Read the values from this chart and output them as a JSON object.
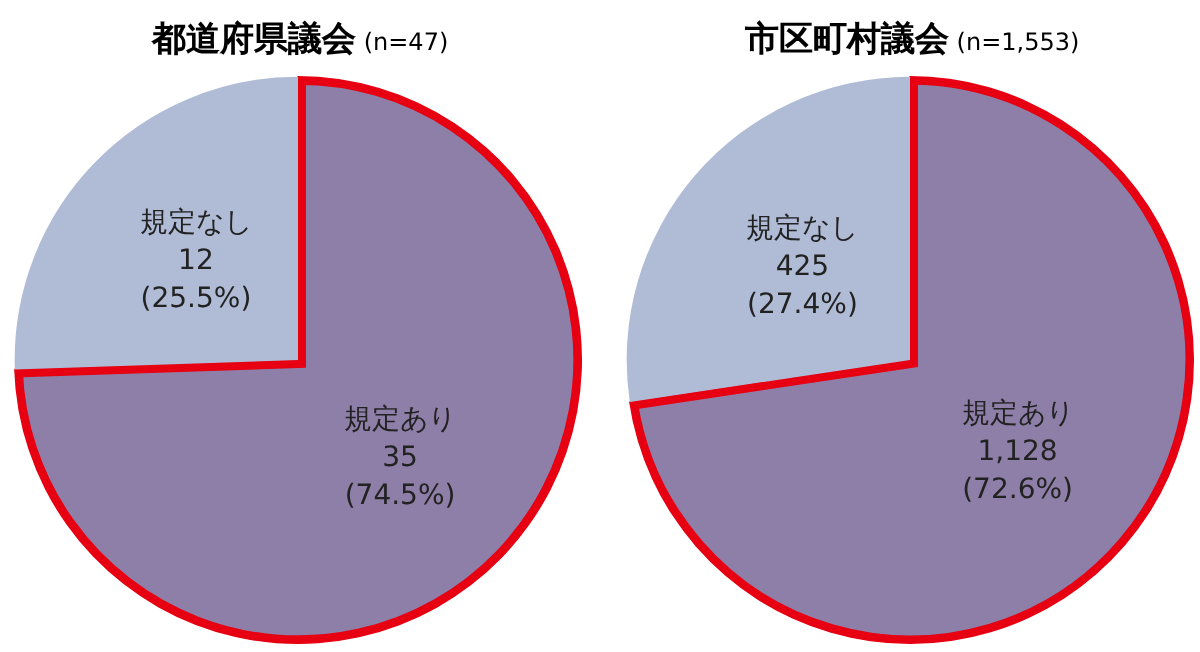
{
  "chart_data": [
    {
      "type": "pie",
      "title": "都道府県議会",
      "subtitle": "(n=47)",
      "categories": [
        "規定あり",
        "規定なし"
      ],
      "values": [
        35,
        12
      ],
      "colors": [
        "#8e7fa8",
        "#b0bcd6"
      ],
      "value_labels": [
        "35\n(74.5%)",
        "12\n(25.5%)"
      ]
    },
    {
      "type": "pie",
      "title": "市区町村議会",
      "subtitle": "(n=1,553)",
      "categories": [
        "規定あり",
        "規定なし"
      ],
      "values": [
        1128,
        425
      ],
      "colors": [
        "#8e7fa8",
        "#b0bcd6"
      ],
      "value_labels": [
        "1,128\n(72.6%)",
        "425\n(27.4%)"
      ]
    }
  ]
}
